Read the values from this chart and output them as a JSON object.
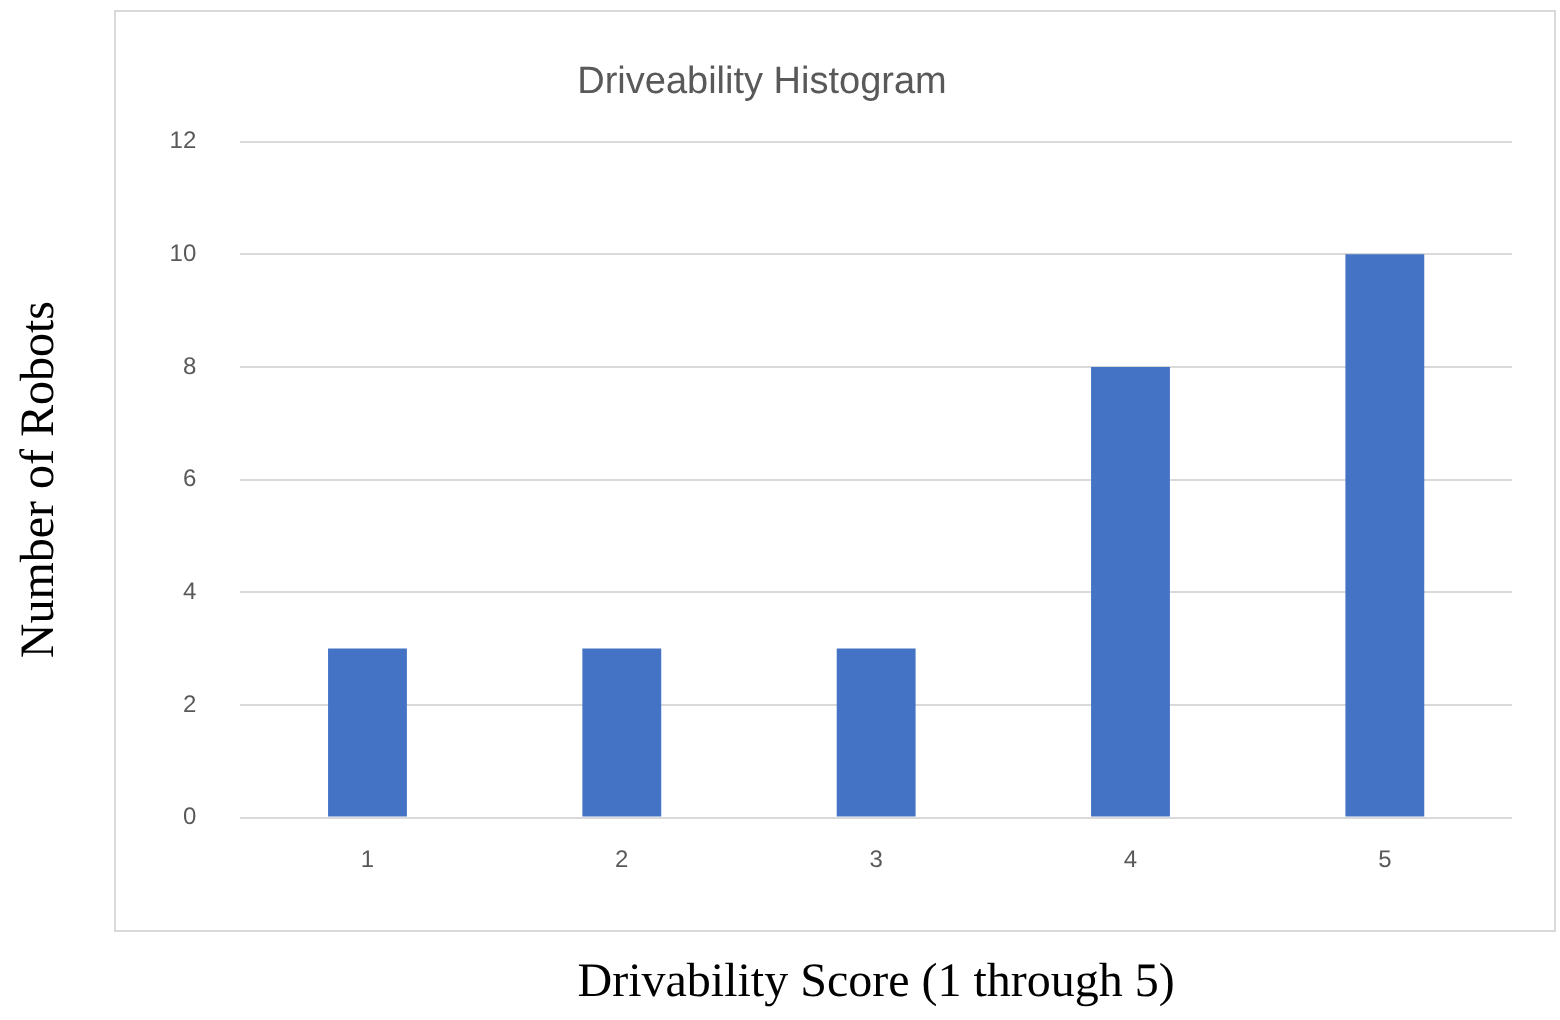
{
  "chart_data": {
    "type": "bar",
    "title": "Driveability Histogram",
    "xlabel": "Drivability Score (1 through 5)",
    "ylabel": "Number of Robots",
    "categories": [
      "1",
      "2",
      "3",
      "4",
      "5"
    ],
    "values": [
      3,
      3,
      3,
      8,
      10
    ],
    "color": "#4472c4",
    "ylim": [
      0,
      12
    ],
    "yticks": [
      0,
      2,
      4,
      6,
      8,
      10,
      12
    ],
    "grid": "y",
    "legend": false
  }
}
